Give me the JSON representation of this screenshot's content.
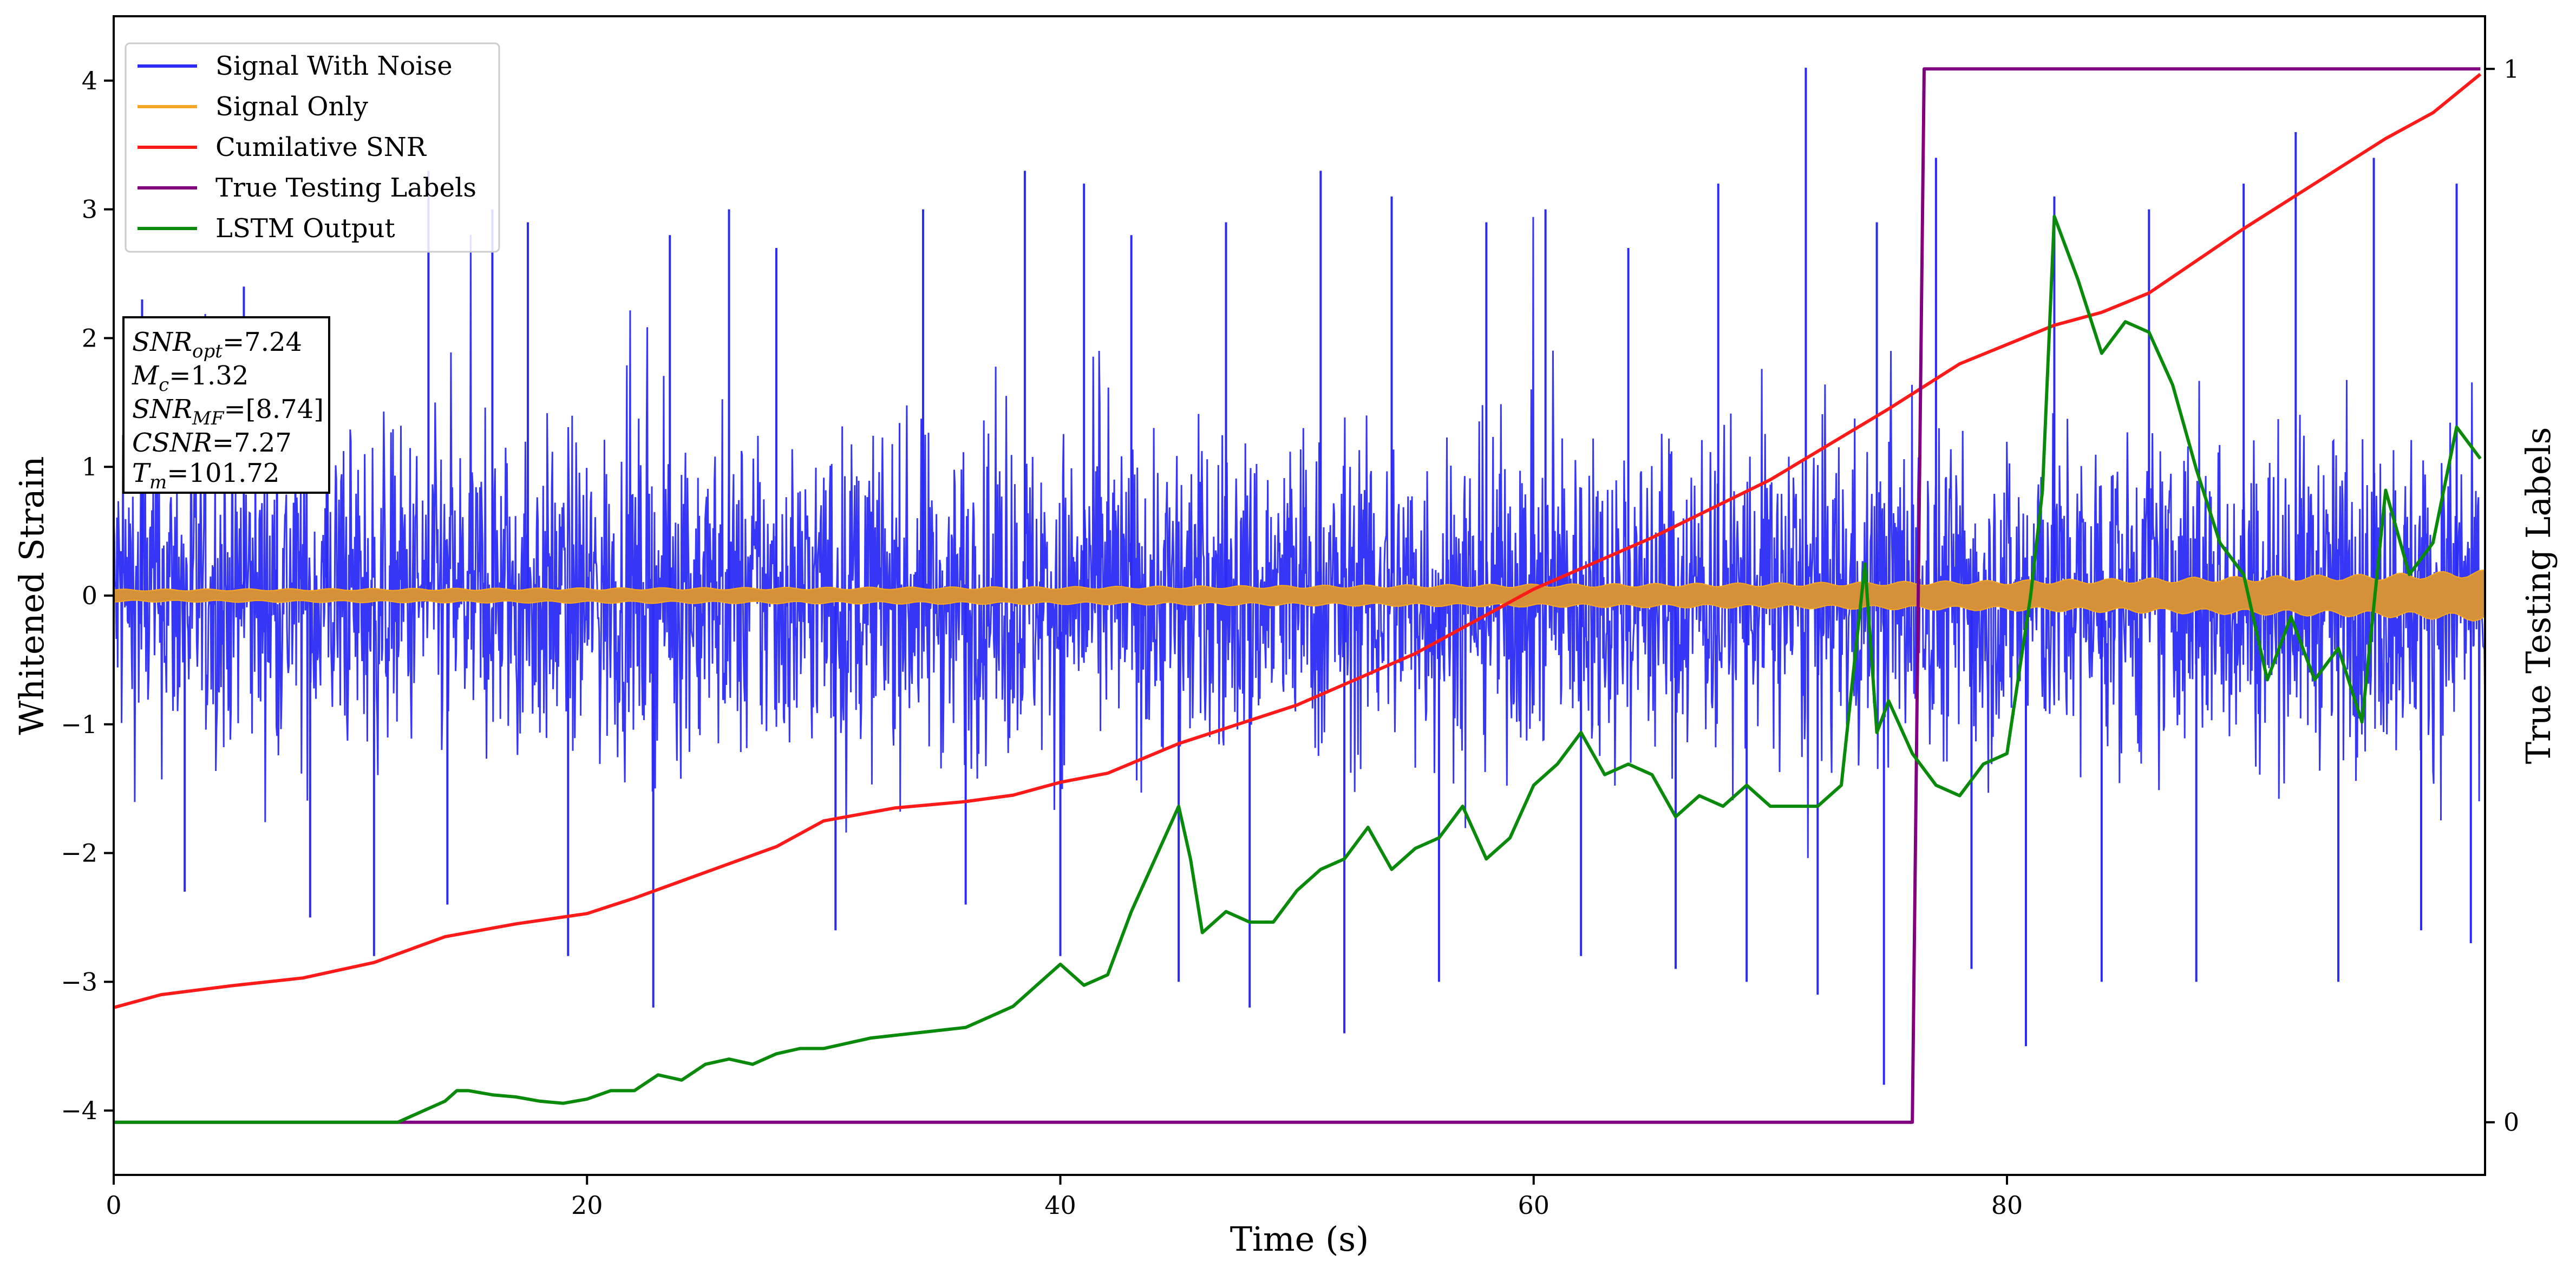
{
  "chart_data": {
    "type": "line",
    "xlabel": "Time (s)",
    "ylabel": "Whitened Strain",
    "y2label": "True Testing Labels",
    "xlim": [
      0,
      100.2
    ],
    "ylim": [
      -4.5,
      4.5
    ],
    "y2lim": [
      -0.05,
      1.05
    ],
    "x_ticks": [
      "0",
      "20",
      "40",
      "60",
      "80"
    ],
    "y_ticks": [
      "−4",
      "−3",
      "−2",
      "−1",
      "0",
      "1",
      "2",
      "3",
      "4"
    ],
    "y2_ticks": [
      "0",
      "1"
    ],
    "grid": false,
    "legend_position": "top-left",
    "stats_box": {
      "snr_opt": "=7.24",
      "mc": "=1.32",
      "snr_mf": "=[8.74]",
      "csnr": "=7.27",
      "tm": "=101.72"
    },
    "series": [
      {
        "name": "Signal With Noise",
        "color": "#2b2bf5",
        "description_level": "noise band roughly ±1.2 with spikes up to about 4.1 and down to about -3.8",
        "spikes": [
          [
            1.2,
            2.3
          ],
          [
            3.0,
            -2.3
          ],
          [
            5.5,
            2.4
          ],
          [
            6.9,
            1.5
          ],
          [
            8.3,
            -2.5
          ],
          [
            9.0,
            2.0
          ],
          [
            11.0,
            -2.8
          ],
          [
            13.3,
            3.3
          ],
          [
            14.1,
            -2.4
          ],
          [
            16.0,
            3.0
          ],
          [
            17.5,
            2.9
          ],
          [
            19.2,
            -2.8
          ],
          [
            22.8,
            -3.2
          ],
          [
            23.5,
            2.8
          ],
          [
            26.0,
            3.0
          ],
          [
            28.0,
            2.7
          ],
          [
            30.5,
            -2.6
          ],
          [
            34.2,
            3.0
          ],
          [
            36.0,
            -2.4
          ],
          [
            38.5,
            3.3
          ],
          [
            40.0,
            -2.8
          ],
          [
            41.0,
            3.2
          ],
          [
            43.0,
            2.8
          ],
          [
            45.0,
            -3.0
          ],
          [
            47.0,
            2.9
          ],
          [
            48.0,
            -3.2
          ],
          [
            51.0,
            3.3
          ],
          [
            52.0,
            -3.4
          ],
          [
            54.0,
            3.1
          ],
          [
            56.0,
            -3.0
          ],
          [
            58.0,
            2.9
          ],
          [
            60.5,
            3.0
          ],
          [
            62.0,
            -2.8
          ],
          [
            64.0,
            2.7
          ],
          [
            66.0,
            -2.9
          ],
          [
            67.8,
            3.2
          ],
          [
            69.0,
            -3.0
          ],
          [
            71.5,
            4.1
          ],
          [
            72.0,
            -3.1
          ],
          [
            74.5,
            2.9
          ],
          [
            74.8,
            -3.8
          ],
          [
            77.0,
            3.4
          ],
          [
            78.5,
            -2.9
          ],
          [
            80.8,
            -3.5
          ],
          [
            82.0,
            3.1
          ],
          [
            84.0,
            -3.0
          ],
          [
            86.0,
            3.0
          ],
          [
            88.0,
            -3.0
          ],
          [
            90.0,
            3.2
          ],
          [
            92.2,
            3.6
          ],
          [
            94.0,
            -3.0
          ],
          [
            95.5,
            3.4
          ],
          [
            97.5,
            -2.6
          ],
          [
            99.0,
            3.2
          ],
          [
            99.6,
            -2.7
          ]
        ]
      },
      {
        "name": "Signal Only",
        "color": "#f5a623",
        "amplitude_envelope": [
          [
            0,
            0.05
          ],
          [
            20,
            0.06
          ],
          [
            40,
            0.07
          ],
          [
            60,
            0.09
          ],
          [
            70,
            0.1
          ],
          [
            80,
            0.12
          ],
          [
            90,
            0.15
          ],
          [
            96,
            0.17
          ],
          [
            100,
            0.2
          ]
        ]
      },
      {
        "name": "Cumilative SNR",
        "color": "#ff1a1a",
        "y_axis": "left",
        "points": [
          [
            0,
            -3.2
          ],
          [
            2,
            -3.1
          ],
          [
            5,
            -3.03
          ],
          [
            8,
            -2.97
          ],
          [
            11,
            -2.85
          ],
          [
            14,
            -2.65
          ],
          [
            17,
            -2.55
          ],
          [
            20,
            -2.47
          ],
          [
            22,
            -2.35
          ],
          [
            25,
            -2.15
          ],
          [
            28,
            -1.95
          ],
          [
            30,
            -1.75
          ],
          [
            33,
            -1.65
          ],
          [
            36,
            -1.6
          ],
          [
            38,
            -1.55
          ],
          [
            40,
            -1.45
          ],
          [
            42,
            -1.38
          ],
          [
            45,
            -1.15
          ],
          [
            50,
            -0.85
          ],
          [
            55,
            -0.45
          ],
          [
            60,
            0.05
          ],
          [
            65,
            0.45
          ],
          [
            70,
            0.9
          ],
          [
            75,
            1.45
          ],
          [
            78,
            1.8
          ],
          [
            80,
            1.95
          ],
          [
            82,
            2.1
          ],
          [
            84,
            2.2
          ],
          [
            86,
            2.35
          ],
          [
            88,
            2.6
          ],
          [
            90,
            2.85
          ],
          [
            93,
            3.2
          ],
          [
            96,
            3.55
          ],
          [
            98,
            3.75
          ],
          [
            100,
            4.05
          ]
        ]
      },
      {
        "name": "True Testing Labels",
        "color": "#800080",
        "y_axis": "right",
        "points": [
          [
            0,
            0
          ],
          [
            76.0,
            0
          ],
          [
            76.5,
            1
          ],
          [
            100,
            1
          ]
        ]
      },
      {
        "name": "LSTM Output",
        "color": "#0a8a0a",
        "y_axis": "right",
        "points": [
          [
            0,
            0
          ],
          [
            10,
            0
          ],
          [
            12,
            0.0
          ],
          [
            13,
            0.01
          ],
          [
            14,
            0.02
          ],
          [
            14.5,
            0.03
          ],
          [
            15,
            0.03
          ],
          [
            16,
            0.026
          ],
          [
            17,
            0.024
          ],
          [
            18,
            0.02
          ],
          [
            19,
            0.018
          ],
          [
            20,
            0.022
          ],
          [
            21,
            0.03
          ],
          [
            22,
            0.03
          ],
          [
            23,
            0.045
          ],
          [
            24,
            0.04
          ],
          [
            25,
            0.055
          ],
          [
            26,
            0.06
          ],
          [
            27,
            0.055
          ],
          [
            28,
            0.065
          ],
          [
            29,
            0.07
          ],
          [
            30,
            0.07
          ],
          [
            32,
            0.08
          ],
          [
            34,
            0.085
          ],
          [
            36,
            0.09
          ],
          [
            37,
            0.1
          ],
          [
            38,
            0.11
          ],
          [
            39,
            0.13
          ],
          [
            40,
            0.15
          ],
          [
            41,
            0.13
          ],
          [
            42,
            0.14
          ],
          [
            43,
            0.2
          ],
          [
            44,
            0.25
          ],
          [
            45,
            0.3
          ],
          [
            45.5,
            0.25
          ],
          [
            46,
            0.18
          ],
          [
            47,
            0.2
          ],
          [
            48,
            0.19
          ],
          [
            49,
            0.19
          ],
          [
            50,
            0.22
          ],
          [
            51,
            0.24
          ],
          [
            52,
            0.25
          ],
          [
            53,
            0.28
          ],
          [
            54,
            0.24
          ],
          [
            55,
            0.26
          ],
          [
            56,
            0.27
          ],
          [
            57,
            0.3
          ],
          [
            58,
            0.25
          ],
          [
            59,
            0.27
          ],
          [
            60,
            0.32
          ],
          [
            61,
            0.34
          ],
          [
            62,
            0.37
          ],
          [
            63,
            0.33
          ],
          [
            64,
            0.34
          ],
          [
            65,
            0.33
          ],
          [
            66,
            0.29
          ],
          [
            67,
            0.31
          ],
          [
            68,
            0.3
          ],
          [
            69,
            0.32
          ],
          [
            70,
            0.3
          ],
          [
            71,
            0.3
          ],
          [
            72,
            0.3
          ],
          [
            73,
            0.32
          ],
          [
            74,
            0.53
          ],
          [
            74.5,
            0.37
          ],
          [
            75,
            0.4
          ],
          [
            76,
            0.35
          ],
          [
            77,
            0.32
          ],
          [
            78,
            0.31
          ],
          [
            79,
            0.34
          ],
          [
            80,
            0.35
          ],
          [
            81,
            0.5
          ],
          [
            81.5,
            0.6
          ],
          [
            82,
            0.86
          ],
          [
            83,
            0.8
          ],
          [
            84,
            0.73
          ],
          [
            85,
            0.76
          ],
          [
            86,
            0.75
          ],
          [
            87,
            0.7
          ],
          [
            88,
            0.62
          ],
          [
            89,
            0.55
          ],
          [
            90,
            0.52
          ],
          [
            91,
            0.42
          ],
          [
            92,
            0.48
          ],
          [
            93,
            0.42
          ],
          [
            94,
            0.45
          ],
          [
            95,
            0.38
          ],
          [
            96,
            0.6
          ],
          [
            97,
            0.52
          ],
          [
            98,
            0.55
          ],
          [
            99,
            0.66
          ],
          [
            100,
            0.63
          ]
        ]
      }
    ]
  }
}
